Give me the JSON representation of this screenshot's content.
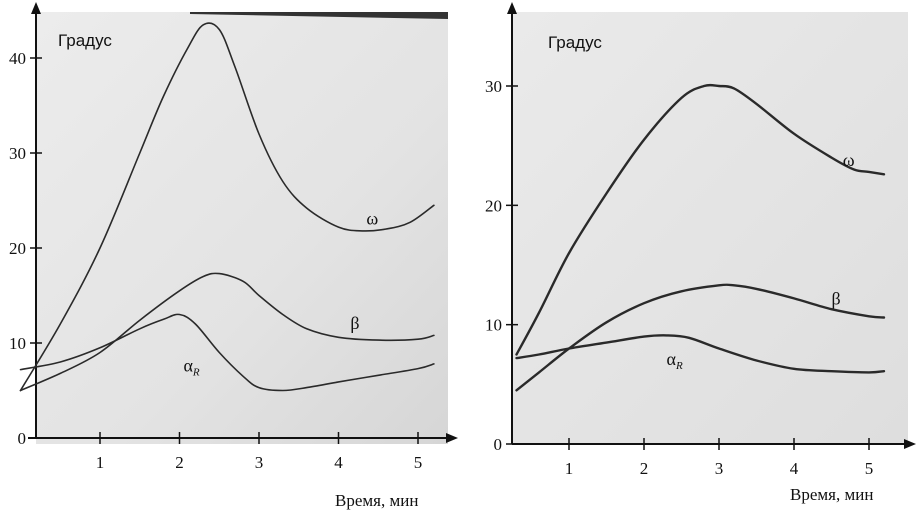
{
  "chart_data": [
    {
      "type": "line",
      "ylabel": "Градус",
      "xlabel": "Время, мин",
      "xlim": [
        0,
        5.3
      ],
      "ylim": [
        0,
        45
      ],
      "x_ticks": [
        1,
        2,
        3,
        4,
        5
      ],
      "y_ticks": [
        0,
        10,
        20,
        30,
        40
      ],
      "grid": false,
      "series": [
        {
          "name": "ω",
          "sub": "",
          "label_at": [
            4.35,
            22.5
          ],
          "x": [
            0,
            0.5,
            1.0,
            1.5,
            1.8,
            2.1,
            2.3,
            2.5,
            2.7,
            3.0,
            3.3,
            3.6,
            4.0,
            4.3,
            4.6,
            4.9,
            5.2
          ],
          "y": [
            5,
            12,
            20,
            30,
            36,
            41,
            43.5,
            43,
            39,
            32,
            27,
            24.2,
            22.2,
            21.8,
            22,
            22.7,
            24.5
          ]
        },
        {
          "name": "β",
          "sub": "",
          "label_at": [
            4.15,
            11.5
          ],
          "x": [
            0,
            0.5,
            1.0,
            1.5,
            2.0,
            2.3,
            2.5,
            2.8,
            3.0,
            3.3,
            3.6,
            4.0,
            4.5,
            5.0,
            5.2
          ],
          "y": [
            5,
            6.8,
            9,
            12.4,
            15.5,
            17,
            17.3,
            16.5,
            15,
            13,
            11.5,
            10.6,
            10.3,
            10.4,
            10.8
          ]
        },
        {
          "name": "α",
          "sub": "R",
          "label_at": [
            2.05,
            7.0
          ],
          "x": [
            0,
            0.5,
            1.0,
            1.5,
            1.8,
            2.0,
            2.2,
            2.5,
            2.8,
            3.0,
            3.3,
            3.6,
            4.0,
            4.5,
            5.0,
            5.2
          ],
          "y": [
            7.2,
            8,
            9.5,
            11.5,
            12.5,
            13,
            12,
            9,
            6.5,
            5.3,
            5,
            5.3,
            5.9,
            6.6,
            7.3,
            7.8
          ]
        }
      ]
    },
    {
      "type": "line",
      "ylabel": "Градус",
      "xlabel": "Время, мин",
      "xlim": [
        0.25,
        5.5
      ],
      "ylim": [
        0,
        35
      ],
      "x_ticks": [
        1,
        2,
        3,
        4,
        5
      ],
      "y_ticks": [
        0,
        10,
        20,
        30
      ],
      "grid": false,
      "series": [
        {
          "name": "ω",
          "sub": "",
          "label_at": [
            4.65,
            23.3
          ],
          "x": [
            0.3,
            0.6,
            1.0,
            1.5,
            2.0,
            2.5,
            2.8,
            3.0,
            3.2,
            3.5,
            4.0,
            4.5,
            4.8,
            5.0,
            5.2
          ],
          "y": [
            7.5,
            11,
            16,
            21,
            25.5,
            29,
            30,
            30,
            29.8,
            28.5,
            26,
            24,
            23,
            22.8,
            22.6
          ]
        },
        {
          "name": "β",
          "sub": "",
          "label_at": [
            4.5,
            11.7
          ],
          "x": [
            0.3,
            0.6,
            1.0,
            1.5,
            2.0,
            2.5,
            3.0,
            3.2,
            3.5,
            4.0,
            4.5,
            5.0,
            5.2
          ],
          "y": [
            4.5,
            6,
            8,
            10.2,
            11.8,
            12.8,
            13.3,
            13.3,
            13,
            12.2,
            11.3,
            10.7,
            10.6
          ]
        },
        {
          "name": "α",
          "sub": "R",
          "label_at": [
            2.3,
            6.6
          ],
          "x": [
            0.3,
            0.6,
            1.0,
            1.5,
            2.0,
            2.3,
            2.6,
            3.0,
            3.5,
            4.0,
            4.5,
            5.0,
            5.2
          ],
          "y": [
            7.2,
            7.5,
            8,
            8.5,
            9,
            9.1,
            8.9,
            8,
            7,
            6.3,
            6.1,
            6,
            6.1
          ]
        }
      ]
    }
  ]
}
